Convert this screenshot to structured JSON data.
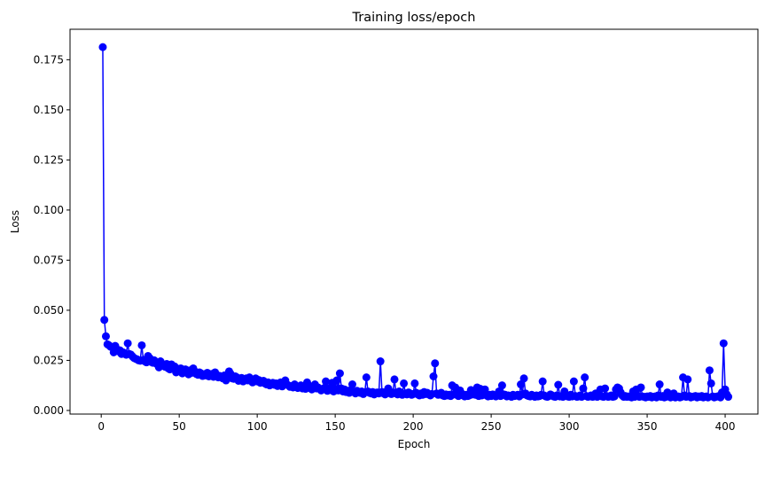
{
  "chart_data": {
    "type": "line",
    "title": "Training loss/epoch",
    "xlabel": "Epoch",
    "ylabel": "Loss",
    "xlim": [
      -20,
      421
    ],
    "ylim": [
      -0.0018,
      0.1902
    ],
    "xticks": [
      0,
      50,
      100,
      150,
      200,
      250,
      300,
      350,
      400
    ],
    "yticks": [
      0.0,
      0.025,
      0.05,
      0.075,
      0.1,
      0.125,
      0.15,
      0.175
    ],
    "ytick_labels": [
      "0.000",
      "0.025",
      "0.050",
      "0.075",
      "0.100",
      "0.125",
      "0.150",
      "0.175"
    ],
    "grid": false,
    "marker": "circle",
    "color": "#0000ff",
    "series": [
      {
        "x_start": 1,
        "x_step": 1,
        "values": [
          0.1813,
          0.0452,
          0.037,
          0.033,
          0.0325,
          0.0318,
          0.0315,
          0.029,
          0.0322,
          0.0305,
          0.0295,
          0.03,
          0.0282,
          0.029,
          0.0285,
          0.0278,
          0.0335,
          0.0282,
          0.0279,
          0.027,
          0.0262,
          0.0258,
          0.0255,
          0.025,
          0.0248,
          0.0325,
          0.0252,
          0.0245,
          0.024,
          0.0272,
          0.0262,
          0.0242,
          0.0238,
          0.025,
          0.0235,
          0.023,
          0.0215,
          0.0245,
          0.0228,
          0.0222,
          0.0218,
          0.0232,
          0.021,
          0.0205,
          0.023,
          0.0215,
          0.022,
          0.019,
          0.0208,
          0.02,
          0.021,
          0.0185,
          0.0198,
          0.0205,
          0.0192,
          0.018,
          0.02,
          0.0188,
          0.021,
          0.0195,
          0.0182,
          0.0178,
          0.019,
          0.0185,
          0.0172,
          0.018,
          0.0175,
          0.0188,
          0.017,
          0.0175,
          0.0182,
          0.0168,
          0.019,
          0.0178,
          0.0165,
          0.0172,
          0.0168,
          0.016,
          0.0175,
          0.015,
          0.0168,
          0.0195,
          0.0182,
          0.016,
          0.0158,
          0.017,
          0.0165,
          0.0148,
          0.0155,
          0.0162,
          0.0145,
          0.0152,
          0.016,
          0.015,
          0.0165,
          0.0148,
          0.014,
          0.0155,
          0.016,
          0.0145,
          0.0152,
          0.0138,
          0.0142,
          0.0148,
          0.0135,
          0.013,
          0.014,
          0.0125,
          0.0132,
          0.0138,
          0.0128,
          0.0135,
          0.0122,
          0.013,
          0.014,
          0.012,
          0.0128,
          0.015,
          0.013,
          0.0125,
          0.0118,
          0.0122,
          0.0115,
          0.013,
          0.012,
          0.0112,
          0.0118,
          0.0125,
          0.011,
          0.0115,
          0.0108,
          0.014,
          0.0125,
          0.0112,
          0.0105,
          0.0118,
          0.013,
          0.011,
          0.0115,
          0.0108,
          0.01,
          0.0105,
          0.0112,
          0.0145,
          0.0098,
          0.011,
          0.0102,
          0.0138,
          0.0095,
          0.0108,
          0.015,
          0.01,
          0.0185,
          0.011,
          0.0095,
          0.0105,
          0.0092,
          0.0098,
          0.0088,
          0.0102,
          0.013,
          0.0092,
          0.0085,
          0.0098,
          0.009,
          0.0088,
          0.0095,
          0.0082,
          0.009,
          0.0165,
          0.0095,
          0.0088,
          0.0085,
          0.0092,
          0.008,
          0.0088,
          0.009,
          0.0085,
          0.0245,
          0.0092,
          0.0085,
          0.008,
          0.0095,
          0.011,
          0.0088,
          0.0082,
          0.009,
          0.0155,
          0.0085,
          0.008,
          0.0095,
          0.0088,
          0.0078,
          0.0135,
          0.0085,
          0.008,
          0.009,
          0.0085,
          0.0078,
          0.0082,
          0.0135,
          0.0088,
          0.008,
          0.0075,
          0.0085,
          0.0078,
          0.0092,
          0.0082,
          0.0088,
          0.008,
          0.0075,
          0.0082,
          0.017,
          0.0235,
          0.0085,
          0.0078,
          0.008,
          0.0088,
          0.0075,
          0.0072,
          0.008,
          0.0075,
          0.0078,
          0.0072,
          0.0125,
          0.008,
          0.0115,
          0.0078,
          0.0072,
          0.01,
          0.0085,
          0.0075,
          0.007,
          0.0078,
          0.0072,
          0.0075,
          0.0102,
          0.008,
          0.0095,
          0.0078,
          0.0115,
          0.0072,
          0.0108,
          0.0075,
          0.008,
          0.0105,
          0.0075,
          0.007,
          0.0078,
          0.0072,
          0.008,
          0.0075,
          0.007,
          0.0078,
          0.0095,
          0.0072,
          0.0125,
          0.008,
          0.0078,
          0.007,
          0.0075,
          0.0072,
          0.0068,
          0.0078,
          0.0072,
          0.0075,
          0.0078,
          0.007,
          0.013,
          0.008,
          0.016,
          0.0085,
          0.0075,
          0.0072,
          0.007,
          0.0078,
          0.0072,
          0.0068,
          0.0075,
          0.007,
          0.0072,
          0.0078,
          0.0145,
          0.0075,
          0.007,
          0.0068,
          0.0072,
          0.008,
          0.0075,
          0.007,
          0.0068,
          0.0075,
          0.0128,
          0.007,
          0.0072,
          0.0068,
          0.0095,
          0.0072,
          0.007,
          0.0068,
          0.0078,
          0.007,
          0.0145,
          0.0072,
          0.0068,
          0.007,
          0.0075,
          0.0068,
          0.011,
          0.0165,
          0.0072,
          0.0068,
          0.007,
          0.0075,
          0.0068,
          0.007,
          0.0085,
          0.0068,
          0.0072,
          0.0105,
          0.007,
          0.0068,
          0.011,
          0.0072,
          0.0068,
          0.007,
          0.0075,
          0.0068,
          0.007,
          0.0105,
          0.0115,
          0.011,
          0.009,
          0.0075,
          0.0068,
          0.0072,
          0.0068,
          0.007,
          0.0068,
          0.0065,
          0.0095,
          0.0068,
          0.0105,
          0.0072,
          0.0068,
          0.0115,
          0.007,
          0.0068,
          0.0065,
          0.007,
          0.0068,
          0.0072,
          0.0065,
          0.0068,
          0.007,
          0.0065,
          0.0075,
          0.013,
          0.0068,
          0.0072,
          0.0065,
          0.0068,
          0.009,
          0.007,
          0.0065,
          0.0068,
          0.0085,
          0.0065,
          0.0068,
          0.007,
          0.0065,
          0.0068,
          0.0165,
          0.0075,
          0.0068,
          0.0155,
          0.0072,
          0.0065,
          0.0068,
          0.007,
          0.0072,
          0.0065,
          0.007,
          0.0068,
          0.0072,
          0.0065,
          0.0068,
          0.007,
          0.0065,
          0.02,
          0.0135,
          0.007,
          0.0065,
          0.0068,
          0.007,
          0.0072,
          0.0065,
          0.009,
          0.0335,
          0.0105,
          0.008,
          0.0068
        ]
      }
    ]
  }
}
